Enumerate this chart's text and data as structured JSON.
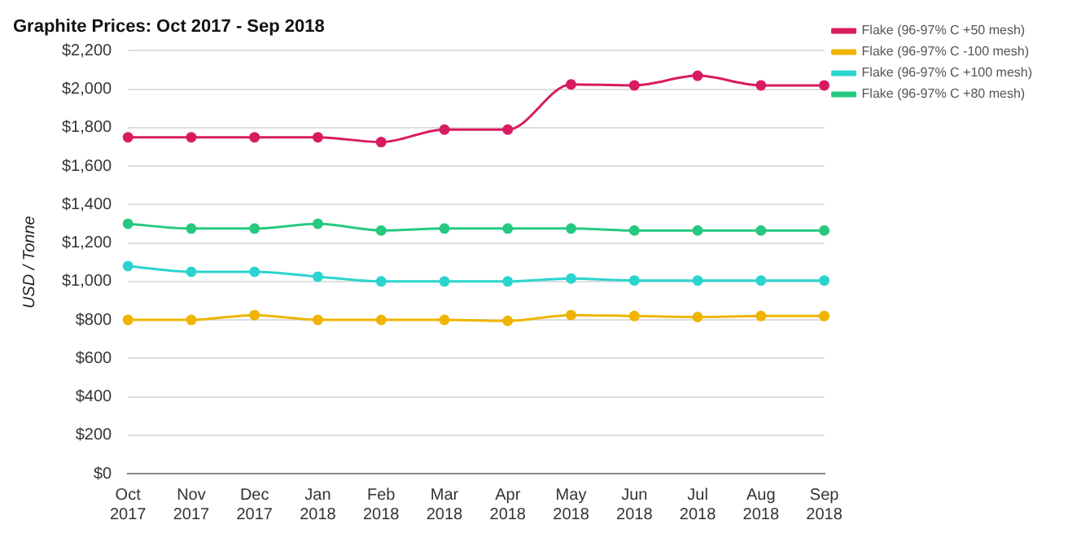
{
  "chart_data": {
    "type": "line",
    "title": "Graphite Prices: Oct 2017 - Sep 2018",
    "ylabel": "USD / Tonne",
    "categories": [
      "Oct 2017",
      "Nov 2017",
      "Dec 2017",
      "Jan 2018",
      "Feb 2018",
      "Mar 2018",
      "Apr 2018",
      "May 2018",
      "Jun 2018",
      "Jul 2018",
      "Aug 2018",
      "Sep 2018"
    ],
    "series": [
      {
        "name": "Flake (96-97% C +50 mesh)",
        "color": "#d81b60",
        "values": [
          1750,
          1750,
          1750,
          1750,
          1725,
          1790,
          1790,
          2025,
          2020,
          2070,
          2020,
          2020
        ]
      },
      {
        "name": "Flake (96-97% C -100 mesh)",
        "color": "#f0b400",
        "values": [
          800,
          800,
          825,
          800,
          800,
          800,
          795,
          825,
          820,
          815,
          820,
          820
        ]
      },
      {
        "name": "Flake (96-97% C +100 mesh)",
        "color": "#2bd4cf",
        "values": [
          1080,
          1050,
          1050,
          1025,
          1000,
          1000,
          1000,
          1015,
          1005,
          1005,
          1005,
          1005
        ]
      },
      {
        "name": "Flake (96-97% C +80 mesh)",
        "color": "#26c97f",
        "values": [
          1300,
          1275,
          1275,
          1300,
          1265,
          1275,
          1275,
          1275,
          1265,
          1265,
          1265,
          1265
        ]
      }
    ],
    "ylim": [
      0,
      2200
    ],
    "yticks": [
      {
        "value": 0,
        "label": "$0"
      },
      {
        "value": 200,
        "label": "$200"
      },
      {
        "value": 400,
        "label": "$400"
      },
      {
        "value": 600,
        "label": "$600"
      },
      {
        "value": 800,
        "label": "$800"
      },
      {
        "value": 1000,
        "label": "$1,000"
      },
      {
        "value": 1200,
        "label": "$1,200"
      },
      {
        "value": 1400,
        "label": "$1,400"
      },
      {
        "value": 1600,
        "label": "$1,600"
      },
      {
        "value": 1800,
        "label": "$1,800"
      },
      {
        "value": 2000,
        "label": "$2,000"
      },
      {
        "value": 2200,
        "label": "$2,200"
      }
    ],
    "grid": "y",
    "legend": "top right",
    "marker": "circle",
    "line_style": "solid"
  }
}
